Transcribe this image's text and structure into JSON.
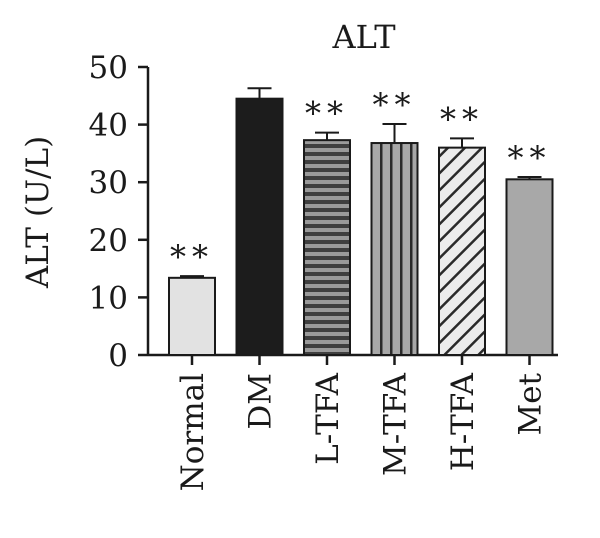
{
  "chart_data": {
    "type": "bar",
    "title": "ALT",
    "ylabel": "ALT (U/L)",
    "xlabel": "",
    "ylim": [
      0,
      50
    ],
    "yticks": [
      "0",
      "10",
      "20",
      "30",
      "40",
      "50"
    ],
    "categories": [
      "Normal",
      "DM",
      "L-TFA",
      "M-TFA",
      "H-TFA",
      "Met"
    ],
    "values": [
      13.4,
      44.5,
      37.3,
      36.8,
      36.0,
      30.5
    ],
    "errors": [
      0.3,
      1.8,
      1.3,
      3.3,
      1.6,
      0.4
    ],
    "significance": [
      "**",
      "",
      "**",
      "**",
      "**",
      "**"
    ],
    "bar_fills": [
      "light-gray",
      "black",
      "horizontal-stripes",
      "vertical-stripes",
      "diagonal-stripes",
      "gray"
    ],
    "colors": {
      "light_gray": "#e2e2e2",
      "black": "#1c1c1c",
      "stripe_dark": "#3f3f3f",
      "stripe_light": "#9a9a9a",
      "gray": "#a8a8a8",
      "axis": "#1a1a1a"
    }
  }
}
